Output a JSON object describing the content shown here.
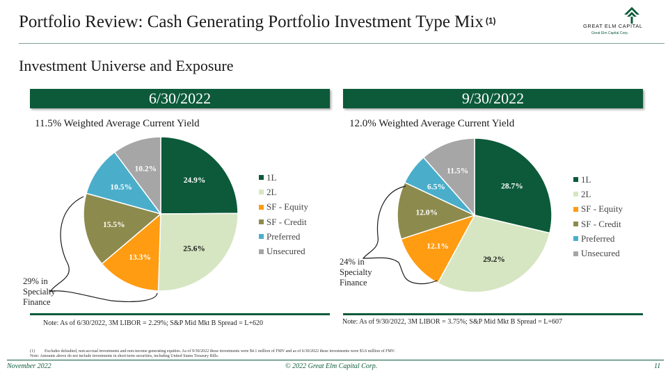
{
  "header": {
    "title": "Portfolio Review: Cash Generating Portfolio Investment Type Mix",
    "title_sup": "(1)",
    "logo_text": "GREAT ELM CAPITAL",
    "logo_sub": "Great Elm Capital Corp."
  },
  "subtitle": "Investment Universe and Exposure",
  "colors": {
    "brand_green": "#0c5a3a",
    "1L": "#0c5a3a",
    "2L": "#d6e6c2",
    "SF - Equity": "#ff9c12",
    "SF - Credit": "#8d8a4d",
    "Preferred": "#4aaecb",
    "Unsecured": "#a6a6a6"
  },
  "panels": [
    {
      "date": "6/30/2022",
      "yield_text": "11.5% Weighted Average Current Yield",
      "specialty_text": "29% in Specialty Finance",
      "note": "Note: As of 6/30/2022, 3M LIBOR = 2.29%; S&P Mid Mkt B Spread = L+620",
      "chart_data": {
        "type": "pie",
        "categories": [
          "1L",
          "2L",
          "SF - Equity",
          "SF - Credit",
          "Preferred",
          "Unsecured"
        ],
        "values": [
          24.9,
          25.6,
          13.3,
          15.5,
          10.5,
          10.2
        ],
        "labels": [
          "24.9%",
          "25.6%",
          "13.3%",
          "15.5%",
          "10.5%",
          "10.2%"
        ],
        "legend": "right"
      }
    },
    {
      "date": "9/30/2022",
      "yield_text": "12.0% Weighted Average Current Yield",
      "specialty_text": "24% in Specialty Finance",
      "note": "Note: As of 9/30/2022, 3M LIBOR = 3.75%; S&P Mid Mkt B Spread = L+607",
      "chart_data": {
        "type": "pie",
        "categories": [
          "1L",
          "2L",
          "SF - Equity",
          "SF - Credit",
          "Preferred",
          "Unsecured"
        ],
        "values": [
          28.7,
          29.2,
          12.1,
          12.0,
          6.5,
          11.5
        ],
        "labels": [
          "28.7%",
          "29.2%",
          "12.1%",
          "12.0%",
          "6.5%",
          "11.5%"
        ],
        "legend": "right"
      }
    }
  ],
  "footnotes": {
    "line1_marker": "(1)",
    "line1": "Excludes defaulted, non-accrual investments and non-income generating equities. As of 9/30/2022 these investments were $4.1 million of FMV and as of 6/30/2022 these investments were $3.6 million of FMV.",
    "line2": "Note: Amounts above do not include investments in short-term securities, including United States Treasury Bills."
  },
  "footer": {
    "date": "November 2022",
    "copyright": "© 2022 Great Elm Capital Corp.",
    "page": "11"
  }
}
